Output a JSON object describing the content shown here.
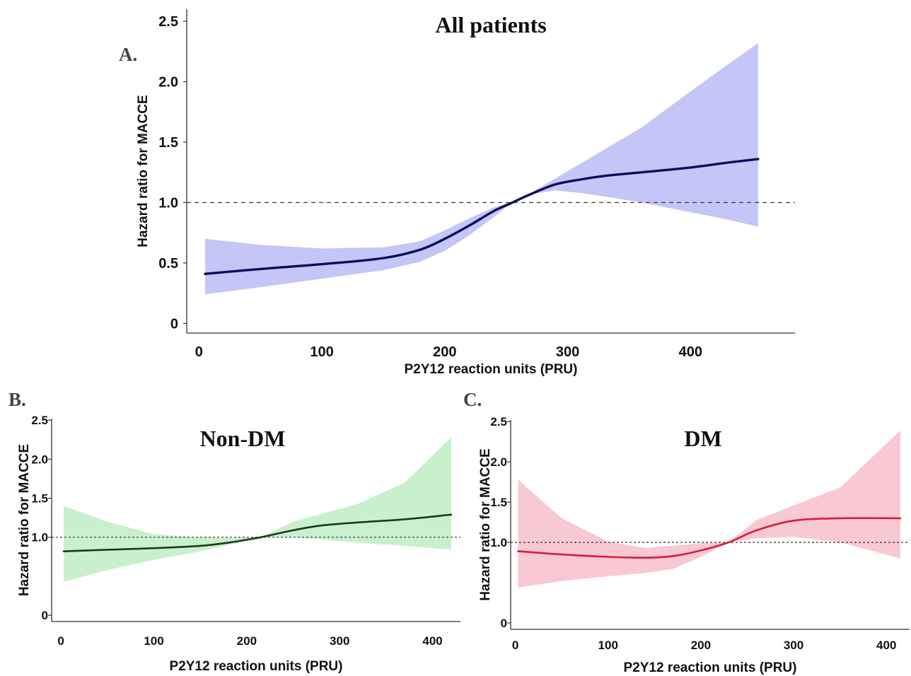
{
  "chart_data": [
    {
      "panel": "A.",
      "type": "line",
      "title": "All patients",
      "xlabel": "P2Y12 reaction units (PRU)",
      "ylabel": "Hazard ratio for MACCE",
      "xlim": [
        -10,
        485
      ],
      "ylim": [
        -0.08,
        2.6
      ],
      "xticks": [
        "0",
        "100",
        "200",
        "300",
        "400"
      ],
      "yticks": [
        "0",
        "0.5",
        "1.0",
        "1.5",
        "2.0",
        "2.5"
      ],
      "reference_line": 1.0,
      "line_color": "#0b0f5c",
      "band_color": "#c4c6f7",
      "series": [
        {
          "x": [
            5,
            50,
            100,
            150,
            180,
            200,
            220,
            240,
            255,
            270,
            290,
            310,
            330,
            360,
            400,
            430,
            455
          ],
          "y": [
            0.41,
            0.45,
            0.49,
            0.54,
            0.61,
            0.7,
            0.81,
            0.93,
            1.0,
            1.07,
            1.15,
            1.19,
            1.22,
            1.25,
            1.29,
            1.33,
            1.36
          ],
          "lower": [
            0.24,
            0.3,
            0.37,
            0.44,
            0.51,
            0.6,
            0.73,
            0.88,
            1.0,
            1.07,
            1.1,
            1.08,
            1.05,
            1.0,
            0.92,
            0.86,
            0.8
          ],
          "upper": [
            0.7,
            0.65,
            0.62,
            0.63,
            0.68,
            0.77,
            0.87,
            0.96,
            1.0,
            1.08,
            1.2,
            1.32,
            1.44,
            1.62,
            1.92,
            2.14,
            2.32
          ]
        }
      ]
    },
    {
      "panel": "B.",
      "type": "line",
      "title": "Non-DM",
      "xlabel": "P2Y12 reaction units (PRU)",
      "ylabel": "Hazard ratio for MACCE",
      "xlim": [
        -10,
        430
      ],
      "ylim": [
        -0.08,
        2.52
      ],
      "xticks": [
        "0",
        "100",
        "200",
        "300",
        "400"
      ],
      "yticks": [
        "0",
        "1.0",
        "1.5",
        "2.0",
        "2.5"
      ],
      "reference_line": 1.0,
      "line_color": "#1a3a1a",
      "band_color": "#c9f0cd",
      "series": [
        {
          "x": [
            3,
            50,
            100,
            150,
            180,
            215,
            250,
            280,
            320,
            370,
            420
          ],
          "y": [
            0.82,
            0.84,
            0.86,
            0.89,
            0.93,
            1.0,
            1.09,
            1.15,
            1.19,
            1.23,
            1.29
          ],
          "lower": [
            0.43,
            0.58,
            0.71,
            0.82,
            0.9,
            1.0,
            1.0,
            0.97,
            0.93,
            0.89,
            0.84
          ],
          "upper": [
            1.4,
            1.2,
            1.04,
            1.0,
            0.99,
            1.0,
            1.2,
            1.3,
            1.43,
            1.7,
            2.28
          ]
        }
      ]
    },
    {
      "panel": "C.",
      "type": "line",
      "title": "DM",
      "xlabel": "P2Y12 reaction units (PRU)",
      "ylabel": "Hazard ratio for MACCE",
      "xlim": [
        -5,
        425
      ],
      "ylim": [
        -0.08,
        2.52
      ],
      "xticks": [
        "0",
        "100",
        "200",
        "300",
        "400"
      ],
      "yticks": [
        "0",
        "1.0",
        "1.5",
        "2.0",
        "2.5"
      ],
      "reference_line": 1.0,
      "line_color": "#d81b3f",
      "band_color": "#f9c9d3",
      "series": [
        {
          "x": [
            3,
            50,
            100,
            140,
            170,
            200,
            230,
            260,
            300,
            350,
            415
          ],
          "y": [
            0.89,
            0.85,
            0.82,
            0.81,
            0.83,
            0.9,
            1.0,
            1.15,
            1.27,
            1.3,
            1.3
          ],
          "lower": [
            0.44,
            0.52,
            0.58,
            0.62,
            0.67,
            0.82,
            1.0,
            1.05,
            1.07,
            1.0,
            0.8
          ],
          "upper": [
            1.78,
            1.3,
            1.01,
            0.93,
            0.96,
            0.99,
            1.0,
            1.28,
            1.46,
            1.68,
            2.39
          ]
        }
      ]
    }
  ]
}
